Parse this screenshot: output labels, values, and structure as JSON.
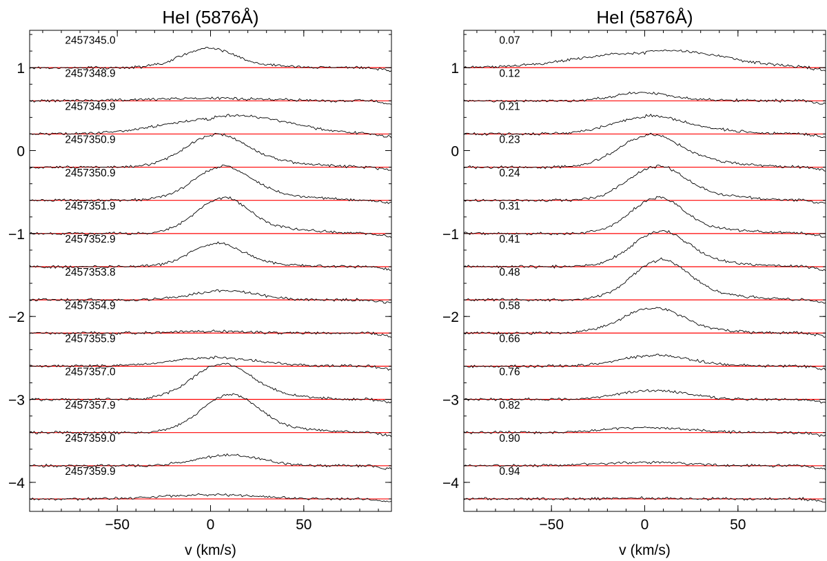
{
  "chart_data": [
    {
      "type": "line",
      "title": "HeI (5876Å)",
      "xlabel": "v (km/s)",
      "ylabel": "",
      "xlim": [
        -97,
        97
      ],
      "ylim": [
        -4.35,
        1.45
      ],
      "xticks": [
        -50,
        0,
        50
      ],
      "yticks": [
        1,
        0,
        -1,
        -2,
        -3,
        -4
      ],
      "xtick_labels": [
        "−50",
        "0",
        "50"
      ],
      "ytick_labels": [
        "1",
        "0",
        "−1",
        "−2",
        "−3",
        "−4"
      ],
      "baseline_color": "#ff0000",
      "line_color": "#000000",
      "grid": false,
      "series": [
        {
          "name": "2457345.0",
          "baseline": 1.0,
          "peak": 0.23,
          "center": -2,
          "width": 14,
          "tail": 0.02
        },
        {
          "name": "2457348.9",
          "baseline": 0.6,
          "peak": 0.03,
          "center": 0,
          "width": 30,
          "tail": 0.0
        },
        {
          "name": "2457349.9",
          "baseline": 0.2,
          "peak": 0.18,
          "center": 2,
          "width": 28,
          "tail": 0.08
        },
        {
          "name": "2457350.9",
          "baseline": -0.2,
          "peak": 0.38,
          "center": 2,
          "width": 16,
          "tail": 0.06
        },
        {
          "name": "2457350.9",
          "baseline": -0.6,
          "peak": 0.4,
          "center": 6,
          "width": 15,
          "tail": 0.05
        },
        {
          "name": "2457351.9",
          "baseline": -1.0,
          "peak": 0.42,
          "center": 6,
          "width": 14,
          "tail": 0.05
        },
        {
          "name": "2457352.9",
          "baseline": -1.4,
          "peak": 0.28,
          "center": 3,
          "width": 14,
          "tail": 0.02
        },
        {
          "name": "2457353.8",
          "baseline": -1.8,
          "peak": 0.11,
          "center": 8,
          "width": 17,
          "tail": 0.0
        },
        {
          "name": "2457354.9",
          "baseline": -2.2,
          "peak": 0.02,
          "center": 0,
          "width": 20,
          "tail": 0.0
        },
        {
          "name": "2457355.9",
          "baseline": -2.6,
          "peak": 0.1,
          "center": 0,
          "width": 22,
          "tail": 0.01
        },
        {
          "name": "2457357.0",
          "baseline": -3.0,
          "peak": 0.42,
          "center": 6,
          "width": 16,
          "tail": 0.03
        },
        {
          "name": "2457357.9",
          "baseline": -3.4,
          "peak": 0.45,
          "center": 10,
          "width": 15,
          "tail": 0.04
        },
        {
          "name": "2457359.0",
          "baseline": -3.8,
          "peak": 0.13,
          "center": 10,
          "width": 17,
          "tail": 0.0
        },
        {
          "name": "2457359.9",
          "baseline": -4.2,
          "peak": 0.05,
          "center": 0,
          "width": 25,
          "tail": 0.0
        }
      ]
    },
    {
      "type": "line",
      "title": "HeI (5876Å)",
      "xlabel": "v (km/s)",
      "ylabel": "",
      "xlim": [
        -97,
        97
      ],
      "ylim": [
        -4.35,
        1.45
      ],
      "xticks": [
        -50,
        0,
        50
      ],
      "yticks": [
        1,
        0,
        -1,
        -2,
        -3,
        -4
      ],
      "xtick_labels": [
        "−50",
        "0",
        "50"
      ],
      "ytick_labels": [
        "1",
        "0",
        "−1",
        "−2",
        "−3",
        "−4"
      ],
      "baseline_color": "#ff0000",
      "line_color": "#000000",
      "grid": false,
      "series": [
        {
          "name": "0.07",
          "baseline": 1.0,
          "peak": 0.18,
          "center": 0,
          "width": 35,
          "tail": 0.05
        },
        {
          "name": "0.12",
          "baseline": 0.6,
          "peak": 0.1,
          "center": -2,
          "width": 14,
          "tail": 0.01
        },
        {
          "name": "0.21",
          "baseline": 0.2,
          "peak": 0.2,
          "center": 0,
          "width": 18,
          "tail": 0.05
        },
        {
          "name": "0.23",
          "baseline": -0.2,
          "peak": 0.38,
          "center": 2,
          "width": 16,
          "tail": 0.06
        },
        {
          "name": "0.24",
          "baseline": -0.6,
          "peak": 0.4,
          "center": 6,
          "width": 15,
          "tail": 0.05
        },
        {
          "name": "0.31",
          "baseline": -1.0,
          "peak": 0.42,
          "center": 6,
          "width": 14,
          "tail": 0.05
        },
        {
          "name": "0.41",
          "baseline": -1.4,
          "peak": 0.42,
          "center": 8,
          "width": 15,
          "tail": 0.04
        },
        {
          "name": "0.48",
          "baseline": -1.8,
          "peak": 0.47,
          "center": 8,
          "width": 15,
          "tail": 0.05
        },
        {
          "name": "0.58",
          "baseline": -2.2,
          "peak": 0.3,
          "center": 4,
          "width": 16,
          "tail": 0.02
        },
        {
          "name": "0.66",
          "baseline": -2.6,
          "peak": 0.13,
          "center": 5,
          "width": 18,
          "tail": 0.01
        },
        {
          "name": "0.76",
          "baseline": -3.0,
          "peak": 0.11,
          "center": 5,
          "width": 18,
          "tail": 0.0
        },
        {
          "name": "0.82",
          "baseline": -3.4,
          "peak": 0.06,
          "center": 2,
          "width": 22,
          "tail": 0.0
        },
        {
          "name": "0.90",
          "baseline": -3.8,
          "peak": 0.04,
          "center": 0,
          "width": 25,
          "tail": 0.0
        },
        {
          "name": "0.94",
          "baseline": -4.2,
          "peak": 0.01,
          "center": 0,
          "width": 20,
          "tail": 0.0
        }
      ]
    }
  ]
}
